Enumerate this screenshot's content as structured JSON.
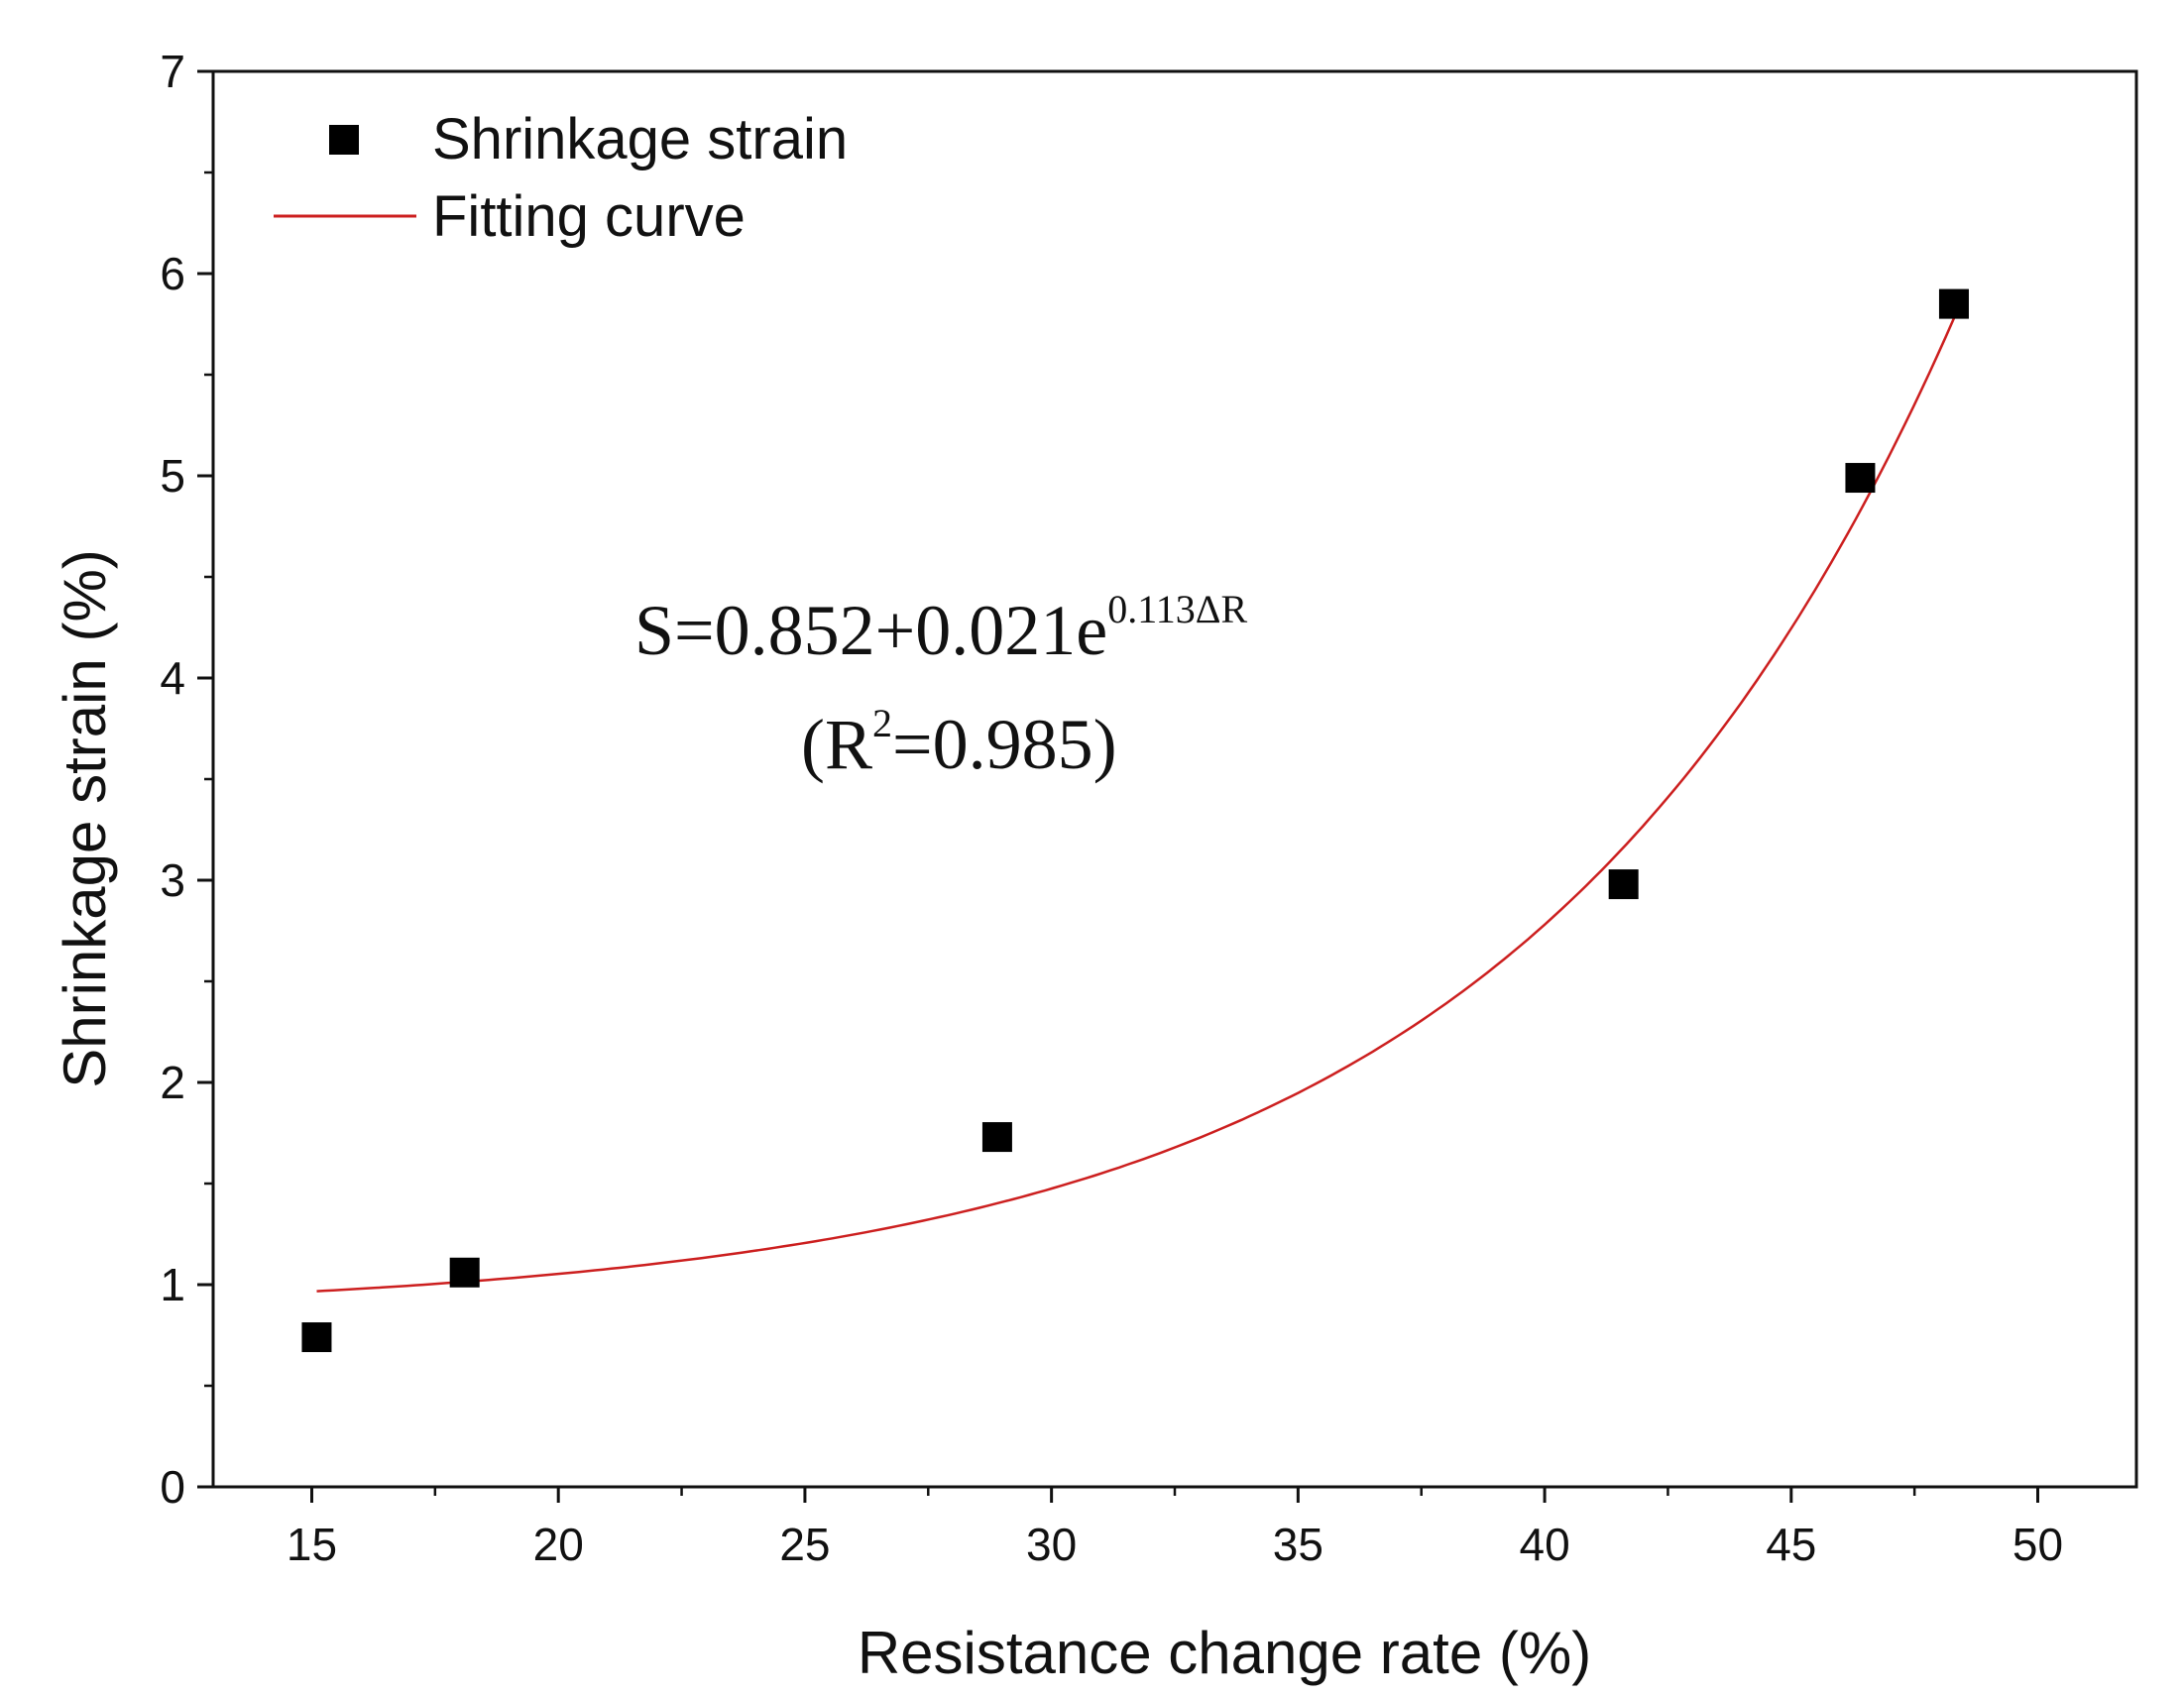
{
  "chart_data": {
    "type": "scatter",
    "title": "",
    "xlabel": "Resistance change rate (%)",
    "ylabel": "Shrinkage strain (%)",
    "xlim": [
      13,
      52
    ],
    "ylim": [
      0,
      7
    ],
    "xticks": [
      15,
      20,
      25,
      30,
      35,
      40,
      45,
      50
    ],
    "yticks": [
      0,
      1,
      2,
      3,
      4,
      5,
      6,
      7
    ],
    "x_minor_step": 2.5,
    "y_minor_step": 0.5,
    "grid": false,
    "legend_position": "top-left",
    "series": [
      {
        "name": "Shrinkage strain",
        "kind": "scatter",
        "marker": "square",
        "color": "#000000",
        "points": [
          {
            "x": 15.1,
            "y": 0.74
          },
          {
            "x": 18.1,
            "y": 1.06
          },
          {
            "x": 28.9,
            "y": 1.73
          },
          {
            "x": 41.6,
            "y": 2.98
          },
          {
            "x": 46.4,
            "y": 4.99
          },
          {
            "x": 48.3,
            "y": 5.85
          }
        ]
      },
      {
        "name": "Fitting curve",
        "kind": "line",
        "color": "#cc1f1f",
        "model": {
          "a": 0.852,
          "b": 0.021,
          "k": 0.113
        },
        "x_range": [
          15.1,
          48.3
        ]
      }
    ],
    "annotation": {
      "equation_main": "S=0.852+0.021e",
      "equation_exponent": "0.113ΔR",
      "r2_open": "(R",
      "r2_sup": "2",
      "r2_close": "=0.985)"
    }
  }
}
